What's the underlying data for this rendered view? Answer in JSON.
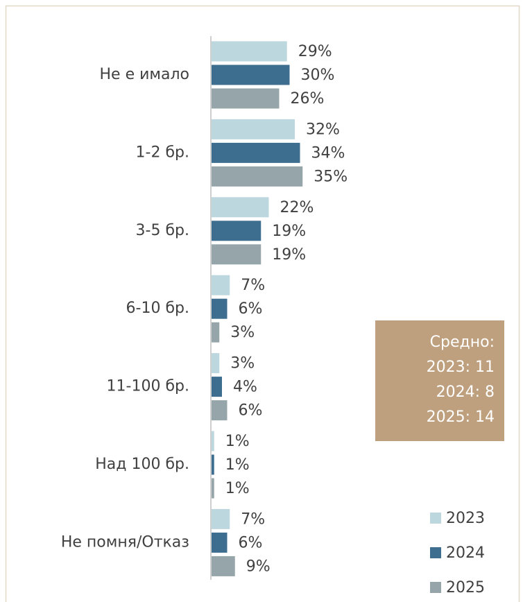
{
  "chart_data": {
    "type": "bar",
    "orientation": "horizontal",
    "categories": [
      "Не е имало",
      "1-2 бр.",
      "3-5 бр.",
      "6-10 бр.",
      "11-100 бр.",
      "Над 100 бр.",
      "Не помня/Отказ"
    ],
    "series": [
      {
        "name": "2023",
        "color": "#bdd7de",
        "values": [
          29,
          32,
          22,
          7,
          3,
          1,
          7
        ],
        "value_labels": [
          "29%",
          "32%",
          "22%",
          "7%",
          "3%",
          "1%",
          "7%"
        ]
      },
      {
        "name": "2024",
        "color": "#3d6e8f",
        "values": [
          30,
          34,
          19,
          6,
          4,
          1,
          6
        ],
        "value_labels": [
          "30%",
          "34%",
          "19%",
          "6%",
          "4%",
          "1%",
          "6%"
        ]
      },
      {
        "name": "2025",
        "color": "#95a5aa",
        "values": [
          26,
          35,
          19,
          3,
          6,
          1,
          9
        ],
        "value_labels": [
          "26%",
          "35%",
          "19%",
          "3%",
          "6%",
          "1%",
          "9%"
        ]
      }
    ],
    "annotation": {
      "lines": [
        "Средно:",
        "2023: 11",
        "2024: 8",
        "2025: 14"
      ],
      "color": "#bfa07e"
    },
    "legend": "bottom-right"
  }
}
